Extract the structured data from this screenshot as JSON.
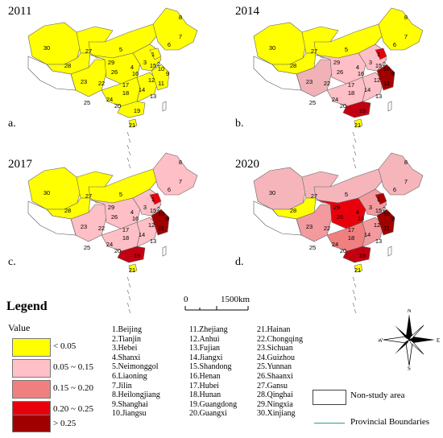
{
  "panels": [
    {
      "year": "2011",
      "label": "a.",
      "hi": {}
    },
    {
      "year": "2014",
      "label": "b.",
      "hi": {
        "m1": "#f0b2b6",
        "m2": "#ffbfc6",
        "e1": "#ffbfc6",
        "e2": "#ffbfc6",
        "n1": "#ffbfc6",
        "beijing": "#e8000b",
        "east": "#a00000",
        "south": "#c20012"
      }
    },
    {
      "year": "2017",
      "label": "c.",
      "hi": {
        "m1": "#ffbfc6",
        "m2": "#ffbfc6",
        "e1": "#ffbfc6",
        "e2": "#ffbfc6",
        "n1": "#ffbfc6",
        "ne": "#ffbfc6",
        "beijing": "#e8000b",
        "east": "#a00000",
        "south": "#c20012"
      }
    },
    {
      "year": "2020",
      "label": "d.",
      "hi": {
        "west": "#f6b5bb",
        "nw": "#f6b5bb",
        "inner": "#f6b5bb",
        "ne": "#f6b5bb",
        "m1": "#f39a9f",
        "m2": "#e8000b",
        "e1": "#f08080",
        "e2": "#f39a9f",
        "n1": "#f39a9f",
        "beijing": "#b00000",
        "east": "#a00000",
        "south": "#c20012"
      }
    }
  ],
  "map_labels": [
    {
      "n": "1"
    },
    {
      "n": "2"
    },
    {
      "n": "3"
    },
    {
      "n": "4"
    },
    {
      "n": "5"
    },
    {
      "n": "6"
    },
    {
      "n": "7"
    },
    {
      "n": "8"
    },
    {
      "n": "9"
    },
    {
      "n": "10"
    },
    {
      "n": "11"
    },
    {
      "n": "12"
    },
    {
      "n": "13"
    },
    {
      "n": "14"
    },
    {
      "n": "15"
    },
    {
      "n": "16"
    },
    {
      "n": "17"
    },
    {
      "n": "18"
    },
    {
      "n": "19"
    },
    {
      "n": "20"
    },
    {
      "n": "21"
    },
    {
      "n": "22"
    },
    {
      "n": "23"
    },
    {
      "n": "24"
    },
    {
      "n": "25"
    },
    {
      "n": "26"
    },
    {
      "n": "27"
    },
    {
      "n": "28"
    },
    {
      "n": "29"
    },
    {
      "n": "30"
    }
  ],
  "legend": {
    "title": "Legend",
    "value_label": "Value",
    "classes": [
      {
        "label": "< 0.05",
        "color": "#ffff00"
      },
      {
        "label": "0.05 ~ 0.15",
        "color": "#ffc0c8"
      },
      {
        "label": "0.15 ~ 0.20",
        "color": "#f08080"
      },
      {
        "label": "0.20 ~ 0.25",
        "color": "#e8000b"
      },
      {
        "label": "> 0.25",
        "color": "#a00000"
      }
    ]
  },
  "provinces": {
    "col1": [
      "1.Beijing",
      "2.Tianjin",
      "3.Hebei",
      "4.Shanxi",
      "5.Neimonggol",
      "6.Liaoning",
      "7.Jilin",
      "8.Heilongjiang",
      "9.Shanghai",
      "10.Jiangsu"
    ],
    "col2": [
      "11.Zhejiang",
      "12.Anhui",
      "13.Fujian",
      "14.Jiangxi",
      "15.Shandong",
      "16.Henan",
      "17.Hubei",
      "18.Hunan",
      "19.Guangdong",
      "20.Guangxi"
    ],
    "col3": [
      "21.Hainan",
      "22.Chongqing",
      "23.Sichuan",
      "24.Guizhou",
      "25.Yunnan",
      "26.Shaanxi",
      "27.Gansu",
      "28.Qinghai",
      "29.Ningxia",
      "30.Xinjiang"
    ]
  },
  "scale": {
    "zero": "0",
    "value": "1500km"
  },
  "compass": {
    "n": "N",
    "s": "S",
    "e": "E",
    "w": "W"
  },
  "extra_legend": {
    "non_study": "Non-study area",
    "boundaries": "Provincial Boundaries"
  }
}
